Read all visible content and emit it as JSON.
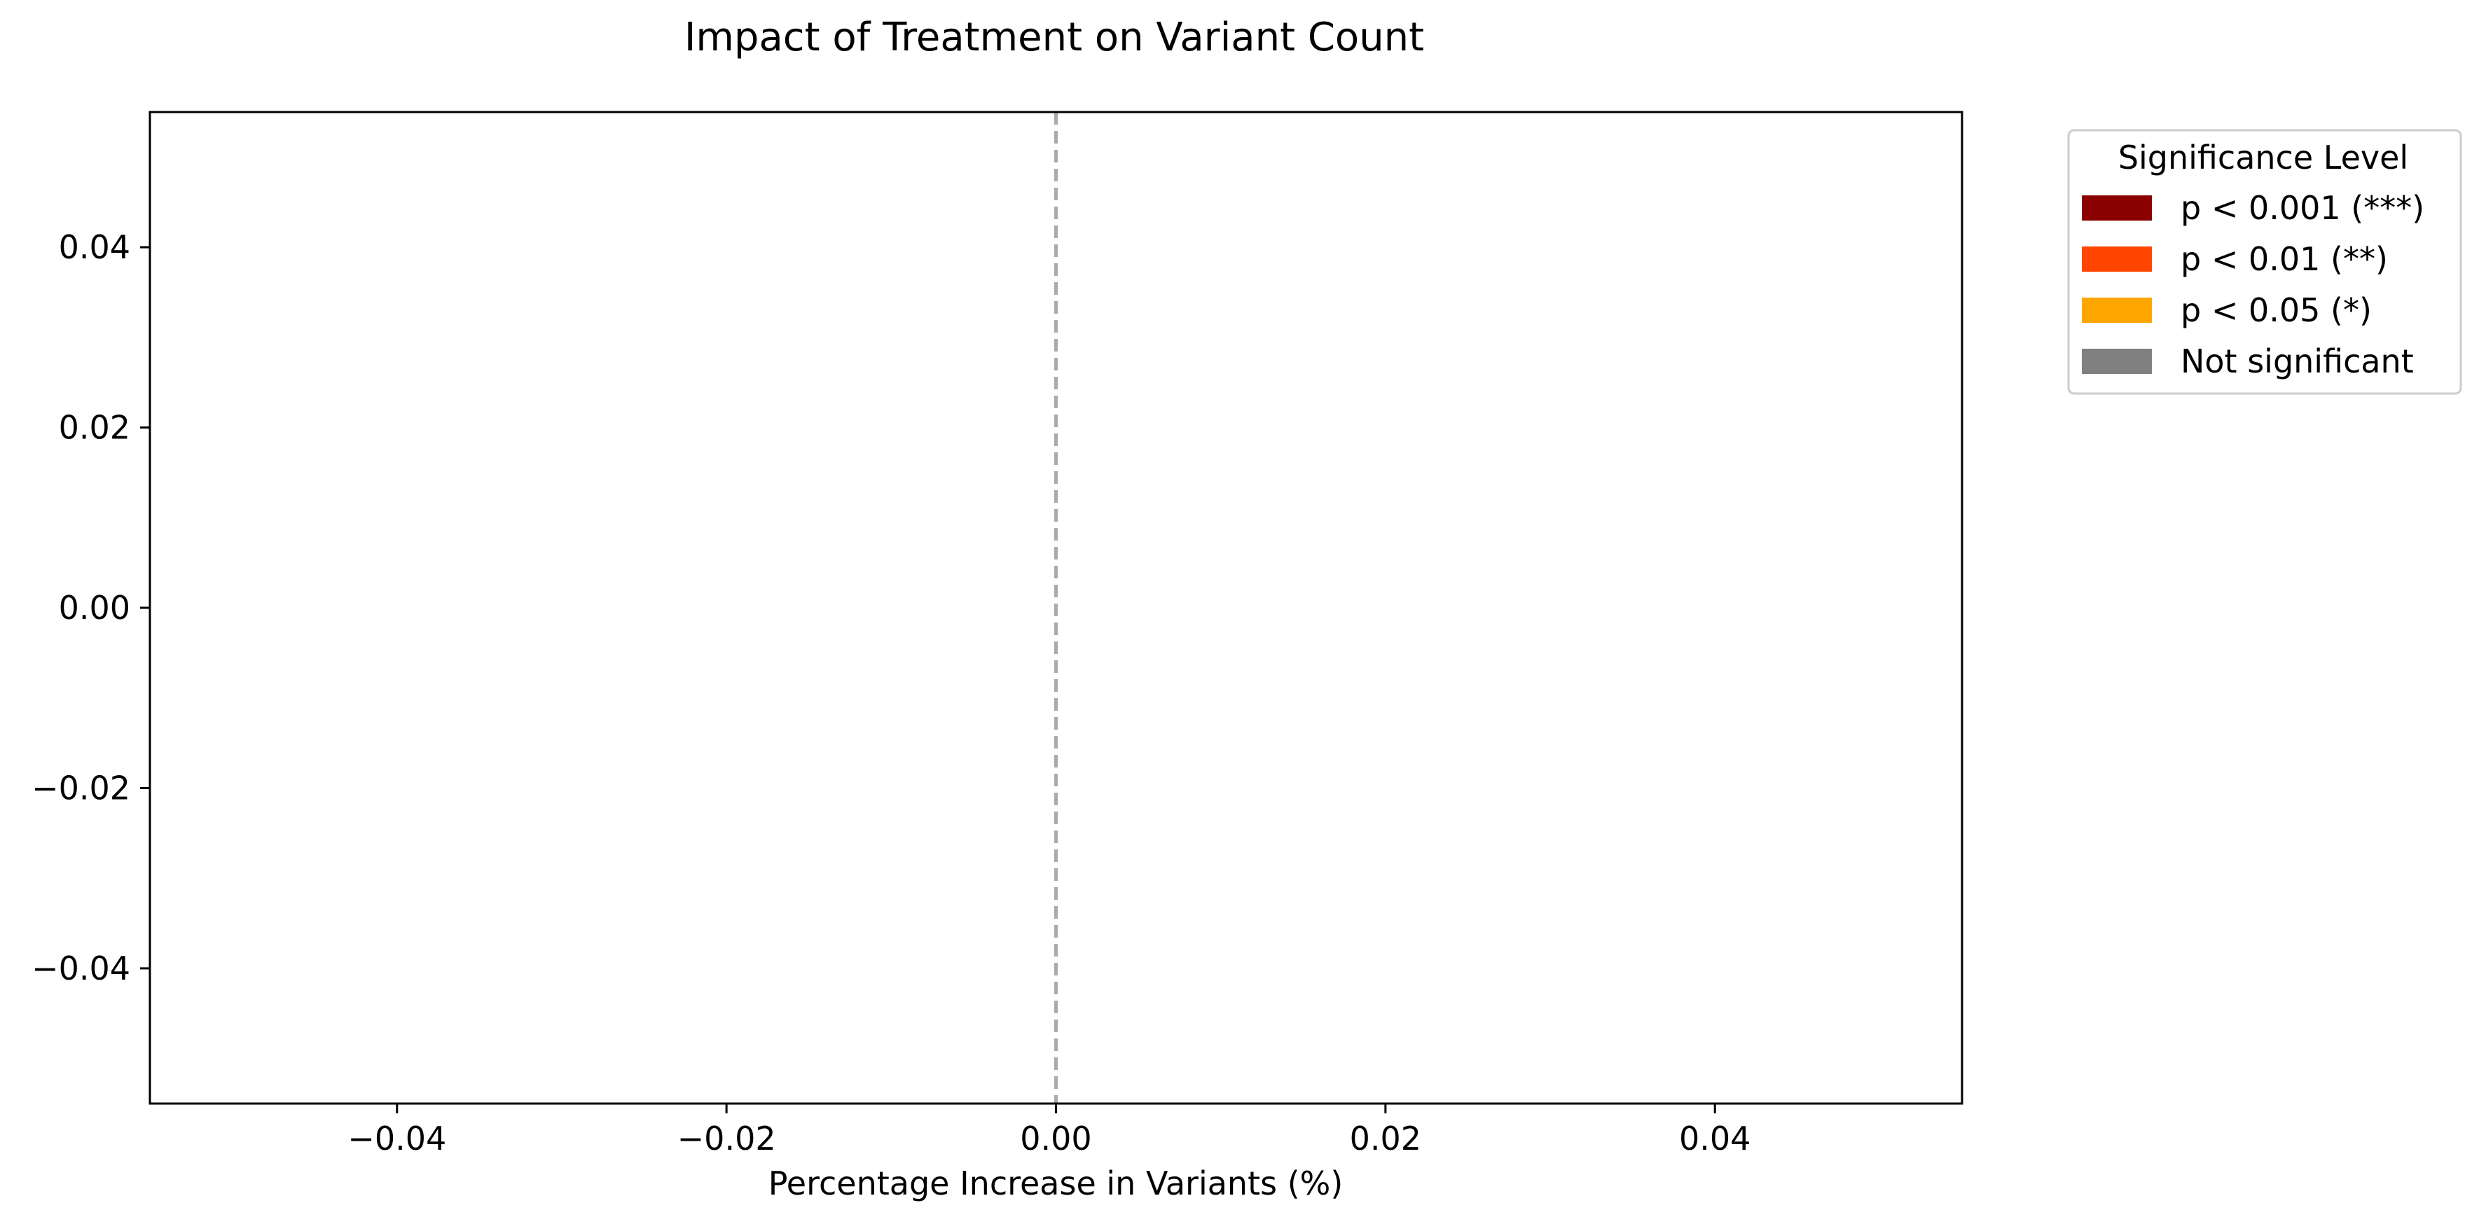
{
  "chart_data": {
    "type": "bar",
    "title": "Impact of Treatment on Variant Count",
    "xlabel": "Percentage Increase in Variants (%)",
    "ylabel": "",
    "orientation": "horizontal",
    "categories": [],
    "values": [],
    "xlim": [
      -0.055,
      0.055
    ],
    "ylim": [
      -0.055,
      0.055
    ],
    "x_ticks": [
      -0.04,
      -0.02,
      0.0,
      0.02,
      0.04
    ],
    "x_tick_labels": [
      "−0.04",
      "−0.02",
      "0.00",
      "0.02",
      "0.04"
    ],
    "y_ticks": [
      0.04,
      0.02,
      0.0,
      -0.02,
      -0.04
    ],
    "y_tick_labels": [
      "0.04",
      "0.02",
      "0.00",
      "−0.02",
      "−0.04"
    ],
    "reference_line": {
      "x": 0.0,
      "style": "dashed",
      "color": "#aaaaaa"
    },
    "grid": false,
    "legend": {
      "title": "Significance Level",
      "placement": "outside-top-right",
      "entries": [
        {
          "label": "p < 0.001 (***)",
          "color": "#8b0000"
        },
        {
          "label": "p < 0.01 (**)",
          "color": "#ff4500"
        },
        {
          "label": "p < 0.05 (*)",
          "color": "#ffa500"
        },
        {
          "label": "Not significant",
          "color": "#808080"
        }
      ]
    }
  }
}
